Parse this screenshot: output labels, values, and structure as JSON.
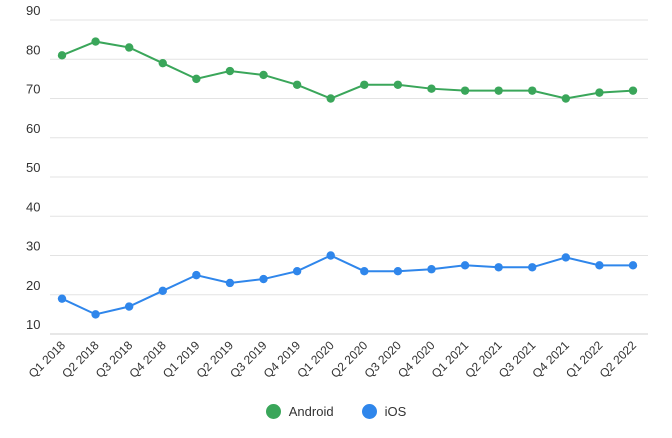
{
  "chart_data": {
    "type": "line",
    "title": "",
    "xlabel": "",
    "ylabel": "",
    "ylim": [
      10,
      90
    ],
    "yticks": [
      10,
      20,
      30,
      40,
      50,
      60,
      70,
      80,
      90
    ],
    "grid": true,
    "legend_position": "bottom",
    "categories": [
      "Q1 2018",
      "Q2 2018",
      "Q3 2018",
      "Q4 2018",
      "Q1 2019",
      "Q2 2019",
      "Q3 2019",
      "Q4 2019",
      "Q1 2020",
      "Q2 2020",
      "Q3 2020",
      "Q4 2020",
      "Q1 2021",
      "Q2 2021",
      "Q3 2021",
      "Q4 2021",
      "Q1 2022",
      "Q2 2022"
    ],
    "series": [
      {
        "name": "Android",
        "color": "#3aa65a",
        "values": [
          81,
          84.5,
          83,
          79,
          75,
          77,
          76,
          73.5,
          70,
          73.5,
          73.5,
          72.5,
          72,
          72,
          72,
          70,
          71.5,
          72
        ]
      },
      {
        "name": "iOS",
        "color": "#2f86eb",
        "values": [
          19,
          15,
          17,
          21,
          25,
          23,
          24,
          26,
          30,
          26,
          26,
          26.5,
          27.5,
          27,
          27,
          29.5,
          27.5,
          27.5
        ]
      }
    ]
  }
}
